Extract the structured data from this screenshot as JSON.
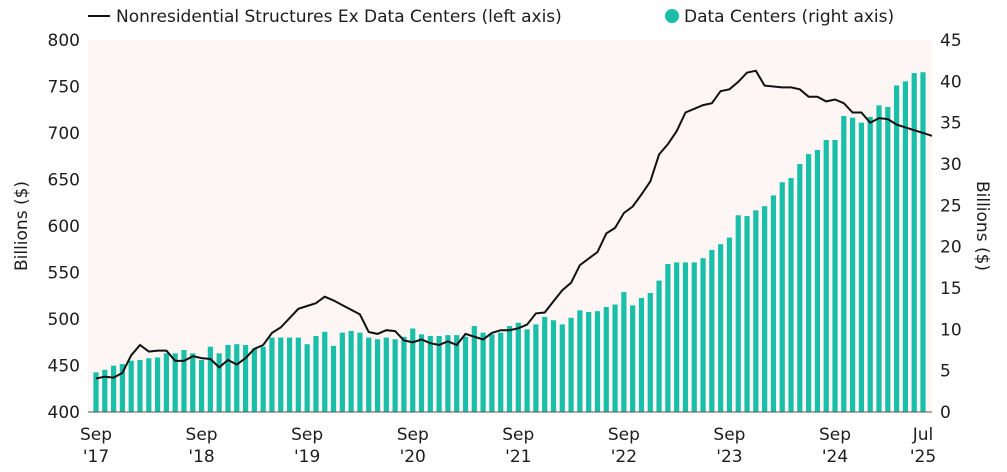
{
  "chart_data": {
    "type": "bar+line",
    "title": "",
    "legend": {
      "placement": "top",
      "entries": [
        "Nonresidential Structures Ex Data Centers (left axis)",
        "Data Centers (right axis)"
      ]
    },
    "ylabel_left": "Billions ($)",
    "ylabel_right": "Billions ($)",
    "ylim_left": [
      400,
      800
    ],
    "ylim_right": [
      0,
      45
    ],
    "yticks_left": [
      400,
      450,
      500,
      550,
      600,
      650,
      700,
      750,
      800
    ],
    "yticks_right": [
      0,
      5,
      10,
      15,
      20,
      25,
      30,
      35,
      40,
      45
    ],
    "xrange": [
      "2017-09",
      "2025-07"
    ],
    "xticks": [
      {
        "date": "2017-09",
        "line1": "Sep",
        "line2": "'17"
      },
      {
        "date": "2018-09",
        "line1": "Sep",
        "line2": "'18"
      },
      {
        "date": "2019-09",
        "line1": "Sep",
        "line2": "'19"
      },
      {
        "date": "2020-09",
        "line1": "Sep",
        "line2": "'20"
      },
      {
        "date": "2021-09",
        "line1": "Sep",
        "line2": "'21"
      },
      {
        "date": "2022-09",
        "line1": "Sep",
        "line2": "'22"
      },
      {
        "date": "2023-09",
        "line1": "Sep",
        "line2": "'23"
      },
      {
        "date": "2024-09",
        "line1": "Sep",
        "line2": "'24"
      },
      {
        "date": "2025-07",
        "line1": "Jul",
        "line2": "'25"
      }
    ],
    "grid": false,
    "colors": {
      "line": "#111111",
      "bars": "#19bfa8",
      "plot_background": "#fdf6f5"
    },
    "series": [
      {
        "name": "Nonresidential Structures Ex Data Centers (left axis)",
        "type": "line",
        "axis": "left",
        "values": [
          436,
          438,
          437,
          442,
          461,
          472,
          465,
          466,
          466,
          455,
          455,
          460,
          458,
          457,
          448,
          456,
          451,
          458,
          468,
          472,
          485,
          491,
          501,
          511,
          514,
          517,
          524,
          520,
          515,
          510,
          505,
          486,
          484,
          488,
          487,
          477,
          475,
          478,
          474,
          472,
          476,
          472,
          484,
          481,
          478,
          485,
          488,
          488,
          490,
          494,
          506,
          507,
          519,
          531,
          539,
          558,
          565,
          572,
          592,
          598,
          614,
          621,
          634,
          648,
          677,
          688,
          702,
          722,
          726,
          730,
          732,
          745,
          747,
          755,
          765,
          767,
          751,
          750,
          749,
          749,
          747,
          739,
          739,
          734,
          736,
          732,
          722,
          722,
          711,
          716,
          715,
          709,
          706,
          703,
          697
        ]
      },
      {
        "name": "Data Centers (right axis)",
        "type": "bar",
        "axis": "right",
        "values": [
          4.8,
          5.1,
          5.6,
          5.8,
          6.2,
          6.3,
          6.5,
          6.6,
          7.1,
          7.1,
          7.5,
          7.1,
          6.3,
          7.9,
          7.1,
          8.1,
          8.2,
          8.1,
          7.7,
          7.9,
          9.0,
          9.0,
          9.0,
          9.0,
          8.2,
          9.2,
          9.7,
          8.0,
          9.6,
          9.8,
          9.6,
          9.0,
          8.8,
          9.0,
          8.8,
          9.1,
          10.1,
          9.4,
          9.2,
          9.2,
          9.3,
          9.3,
          9.1,
          10.4,
          9.6,
          9.4,
          9.6,
          10.4,
          10.8,
          10.0,
          10.6,
          11.5,
          11.1,
          10.6,
          11.4,
          12.3,
          12.1,
          12.2,
          12.7,
          13.0,
          14.5,
          12.9,
          13.8,
          14.4,
          15.9,
          17.9,
          18.1,
          18.1,
          18.1,
          18.6,
          19.6,
          20.3,
          21.1,
          23.8,
          23.7,
          24.4,
          24.9,
          26.2,
          27.8,
          28.3,
          30.0,
          31.2,
          31.7,
          32.9,
          32.9,
          35.8,
          35.6,
          35.0,
          35.7,
          37.1,
          36.9,
          39.5,
          40.0,
          41.0,
          41.1
        ]
      }
    ]
  }
}
